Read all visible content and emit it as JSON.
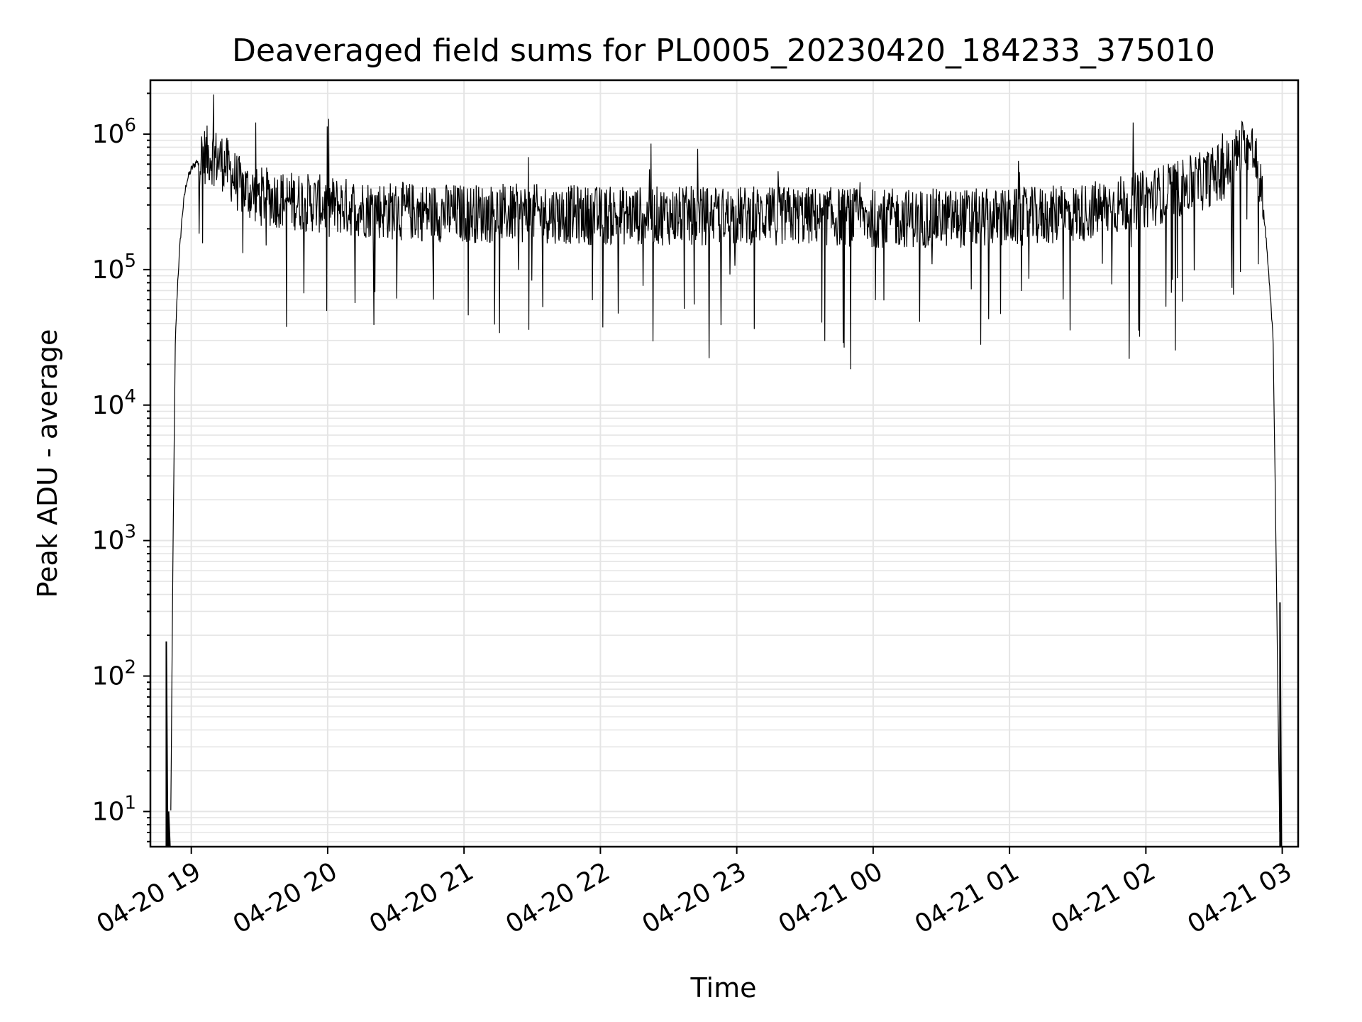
{
  "chart_data": {
    "type": "line",
    "title": "Deaveraged field sums for PL0005_20230420_184233_375010",
    "xlabel": "Time",
    "ylabel": "Peak ADU - average",
    "yscale": "log",
    "ylim": [
      5.5,
      2500000
    ],
    "xlim": [
      "2023-04-20 18:42",
      "2023-04-21 03:07"
    ],
    "grid": true,
    "line_color": "#000000",
    "grid_color": "#e5e5e5",
    "x_ticks": [
      {
        "label": "04-20 19",
        "t": "2023-04-20 19:00"
      },
      {
        "label": "04-20 20",
        "t": "2023-04-20 20:00"
      },
      {
        "label": "04-20 21",
        "t": "2023-04-20 21:00"
      },
      {
        "label": "04-20 22",
        "t": "2023-04-20 22:00"
      },
      {
        "label": "04-20 23",
        "t": "2023-04-20 23:00"
      },
      {
        "label": "04-21 00",
        "t": "2023-04-21 00:00"
      },
      {
        "label": "04-21 01",
        "t": "2023-04-21 01:00"
      },
      {
        "label": "04-21 02",
        "t": "2023-04-21 02:00"
      },
      {
        "label": "04-21 03",
        "t": "2023-04-21 03:00"
      }
    ],
    "y_ticks": [
      {
        "base": "10",
        "exp": "1",
        "value": 10
      },
      {
        "base": "10",
        "exp": "2",
        "value": 100
      },
      {
        "base": "10",
        "exp": "3",
        "value": 1000
      },
      {
        "base": "10",
        "exp": "4",
        "value": 10000
      },
      {
        "base": "10",
        "exp": "5",
        "value": 100000
      },
      {
        "base": "10",
        "exp": "6",
        "value": 1000000
      }
    ],
    "series": [
      {
        "x": [
          "2023-04-20 18:51",
          "2023-04-20 18:52",
          "2023-04-20 18:53",
          "2023-04-20 18:54",
          "2023-04-20 18:55",
          "2023-04-20 18:56",
          "2023-04-20 18:57",
          "2023-04-20 18:58",
          "2023-04-20 19:00",
          "2023-04-20 19:03",
          "2023-04-20 19:06",
          "2023-04-20 19:09",
          "2023-04-20 19:12",
          "2023-04-20 19:15",
          "2023-04-20 19:18",
          "2023-04-20 19:21",
          "2023-04-20 19:25",
          "2023-04-20 19:30",
          "2023-04-20 19:40",
          "2023-04-20 20:00",
          "2023-04-20 20:30",
          "2023-04-20 21:00",
          "2023-04-20 21:30",
          "2023-04-20 22:00",
          "2023-04-20 22:30",
          "2023-04-20 23:00",
          "2023-04-20 23:30",
          "2023-04-21 00:00",
          "2023-04-21 00:30",
          "2023-04-21 01:00",
          "2023-04-21 01:30",
          "2023-04-21 02:00",
          "2023-04-21 02:15",
          "2023-04-21 02:25",
          "2023-04-21 02:35",
          "2023-04-21 02:40",
          "2023-04-21 02:44",
          "2023-04-21 02:47",
          "2023-04-21 02:50",
          "2023-04-21 02:52",
          "2023-04-21 02:54",
          "2023-04-21 02:56",
          "2023-04-21 02:57",
          "2023-04-21 02:58",
          "2023-04-21 02:59"
        ],
        "y": [
          10,
          1000,
          30000,
          80000,
          150000,
          250000,
          350000,
          450000,
          550000,
          650000,
          700000,
          700000,
          650000,
          600000,
          500000,
          420000,
          380000,
          350000,
          330000,
          300000,
          270000,
          260000,
          260000,
          250000,
          250000,
          250000,
          250000,
          240000,
          240000,
          240000,
          260000,
          330000,
          400000,
          450000,
          550000,
          700000,
          850000,
          750000,
          500000,
          250000,
          100000,
          30000,
          2000,
          100,
          5
        ]
      }
    ]
  }
}
